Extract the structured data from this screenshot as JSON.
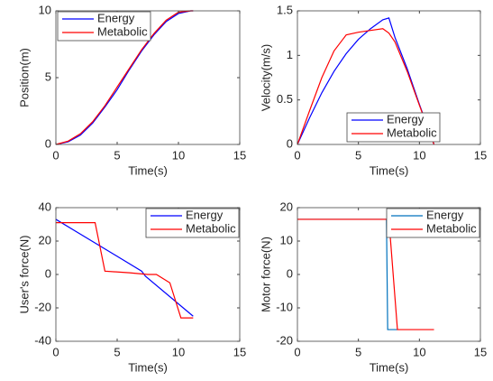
{
  "chart_data": [
    {
      "type": "line",
      "xlabel": "Time(s)",
      "ylabel": "Position(m)",
      "xlim": [
        0,
        15
      ],
      "ylim": [
        0,
        10
      ],
      "xticks": [
        0,
        5,
        10,
        15
      ],
      "yticks": [
        0,
        5,
        10
      ],
      "legend": "northwest",
      "series": [
        {
          "name": "Energy",
          "color": "#0000ff",
          "x": [
            0,
            1,
            2,
            3,
            4,
            5,
            6,
            7,
            8,
            9,
            10,
            11,
            11.2
          ],
          "values": [
            0,
            0.2,
            0.7,
            1.6,
            2.8,
            4.1,
            5.6,
            7.0,
            8.2,
            9.2,
            9.8,
            10,
            10
          ]
        },
        {
          "name": "Metabolic",
          "color": "#ff0000",
          "x": [
            0,
            1,
            2,
            3,
            4,
            5,
            6,
            7,
            8,
            9,
            10,
            11,
            11.2
          ],
          "values": [
            0,
            0.25,
            0.8,
            1.7,
            2.9,
            4.3,
            5.7,
            7.1,
            8.3,
            9.3,
            9.9,
            10,
            10
          ]
        }
      ]
    },
    {
      "type": "line",
      "xlabel": "Time(s)",
      "ylabel": "Velocity(m/s)",
      "xlim": [
        0,
        15
      ],
      "ylim": [
        0,
        1.5
      ],
      "xticks": [
        0,
        5,
        10,
        15
      ],
      "yticks": [
        0,
        0.5,
        1,
        1.5
      ],
      "legend": "south",
      "series": [
        {
          "name": "Energy",
          "color": "#0000ff",
          "x": [
            0,
            1,
            2,
            3,
            4,
            5,
            6,
            7,
            7.5,
            8,
            9,
            10,
            11.2
          ],
          "values": [
            0,
            0.3,
            0.58,
            0.82,
            1.02,
            1.18,
            1.3,
            1.4,
            1.42,
            1.2,
            0.85,
            0.45,
            0
          ]
        },
        {
          "name": "Metabolic",
          "color": "#ff0000",
          "x": [
            0,
            1,
            2,
            3,
            4,
            5,
            6,
            7,
            7.5,
            8,
            9,
            10,
            11.2
          ],
          "values": [
            0,
            0.38,
            0.75,
            1.05,
            1.23,
            1.26,
            1.28,
            1.3,
            1.25,
            1.15,
            0.82,
            0.44,
            0
          ]
        }
      ]
    },
    {
      "type": "line",
      "xlabel": "Time(s)",
      "ylabel": "User's force(N)",
      "xlim": [
        0,
        15
      ],
      "ylim": [
        -40,
        40
      ],
      "xticks": [
        0,
        5,
        10,
        15
      ],
      "yticks": [
        -40,
        -20,
        0,
        20,
        40
      ],
      "legend": "northeast",
      "series": [
        {
          "name": "Energy",
          "color": "#0000ff",
          "x": [
            0,
            7,
            7.3,
            11.2
          ],
          "values": [
            33,
            2,
            -1,
            -25
          ]
        },
        {
          "name": "Metabolic",
          "color": "#ff0000",
          "x": [
            0,
            3.2,
            4,
            6,
            7.5,
            8.2,
            9.3,
            10.2,
            11.2
          ],
          "values": [
            31,
            31,
            2,
            1,
            0,
            0,
            -5,
            -26,
            -26
          ]
        }
      ]
    },
    {
      "type": "line",
      "xlabel": "Time(s)",
      "ylabel": "Motor force(N)",
      "xlim": [
        0,
        15
      ],
      "ylim": [
        -20,
        20
      ],
      "xticks": [
        0,
        5,
        10,
        15
      ],
      "yticks": [
        -20,
        -10,
        0,
        10,
        20
      ],
      "legend": "northeast",
      "series": [
        {
          "name": "Energy",
          "color": "#0072bd",
          "x": [
            0,
            7.3,
            7.4,
            8.2
          ],
          "values": [
            16.5,
            16.5,
            -16.5,
            -16.5
          ]
        },
        {
          "name": "Metabolic",
          "color": "#ff0000",
          "x": [
            0,
            7.5,
            8.2,
            11.2
          ],
          "values": [
            16.5,
            16.5,
            -16.5,
            -16.5
          ]
        }
      ]
    }
  ]
}
